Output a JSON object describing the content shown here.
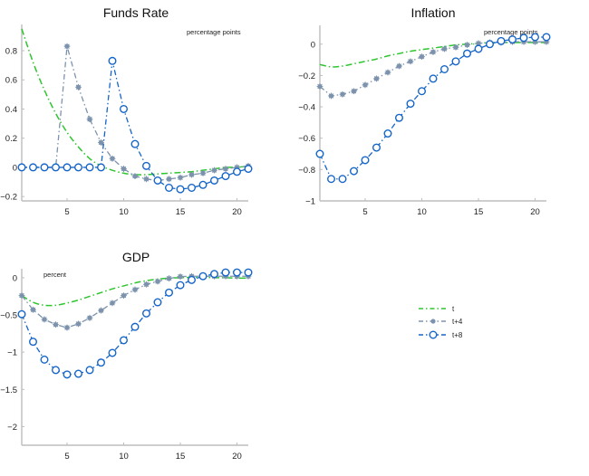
{
  "chart_data": [
    {
      "type": "line",
      "title": "Funds Rate",
      "unit_label": "percentage points",
      "xlabel": "",
      "ylabel": "",
      "xlim": [
        1,
        21
      ],
      "ylim": [
        -0.23,
        0.98
      ],
      "xticks": [
        5,
        10,
        15,
        20
      ],
      "yticks": [
        -0.2,
        0,
        0.2,
        0.4,
        0.6,
        0.8
      ],
      "ytick_labels": [
        "−0.2",
        "0",
        "0.2",
        "0.4",
        "0.6",
        "0.8"
      ],
      "x": [
        1,
        2,
        3,
        4,
        5,
        6,
        7,
        8,
        9,
        10,
        11,
        12,
        13,
        14,
        15,
        16,
        17,
        18,
        19,
        20,
        21
      ],
      "series": [
        {
          "name": "t",
          "values": [
            0.95,
            0.72,
            0.53,
            0.37,
            0.24,
            0.14,
            0.06,
            0.01,
            -0.02,
            -0.04,
            -0.05,
            -0.05,
            -0.045,
            -0.04,
            -0.035,
            -0.03,
            -0.02,
            -0.01,
            0.0,
            0.0,
            0.01
          ]
        },
        {
          "name": "t+4",
          "values": [
            0,
            0,
            0,
            0,
            0.83,
            0.55,
            0.33,
            0.17,
            0.06,
            -0.01,
            -0.06,
            -0.08,
            -0.09,
            -0.08,
            -0.07,
            -0.05,
            -0.04,
            -0.02,
            -0.01,
            0.0,
            0.01
          ]
        },
        {
          "name": "t+8",
          "values": [
            0,
            0,
            0,
            0,
            0,
            0,
            0,
            0,
            0.73,
            0.4,
            0.16,
            0.01,
            -0.09,
            -0.14,
            -0.15,
            -0.14,
            -0.12,
            -0.09,
            -0.06,
            -0.03,
            -0.01
          ]
        }
      ]
    },
    {
      "type": "line",
      "title": "Inflation",
      "unit_label": "percentage points",
      "xlabel": "",
      "ylabel": "",
      "xlim": [
        1,
        21
      ],
      "ylim": [
        -1,
        0.12
      ],
      "xticks": [
        5,
        10,
        15,
        20
      ],
      "yticks": [
        -1,
        -0.8,
        -0.6,
        -0.4,
        -0.2,
        0
      ],
      "ytick_labels": [
        "−1",
        "−0.8",
        "−0.6",
        "−0.4",
        "−0.2",
        "0"
      ],
      "x": [
        1,
        2,
        3,
        4,
        5,
        6,
        7,
        8,
        9,
        10,
        11,
        12,
        13,
        14,
        15,
        16,
        17,
        18,
        19,
        20,
        21
      ],
      "series": [
        {
          "name": "t",
          "values": [
            -0.13,
            -0.145,
            -0.14,
            -0.125,
            -0.11,
            -0.095,
            -0.075,
            -0.06,
            -0.045,
            -0.035,
            -0.025,
            -0.015,
            -0.005,
            0.0,
            0.005,
            0.01,
            0.01,
            0.01,
            0.01,
            0.01,
            0.01
          ]
        },
        {
          "name": "t+4",
          "values": [
            -0.27,
            -0.33,
            -0.32,
            -0.3,
            -0.26,
            -0.22,
            -0.18,
            -0.14,
            -0.11,
            -0.08,
            -0.05,
            -0.03,
            -0.02,
            -0.005,
            0.005,
            0.01,
            0.01,
            0.015,
            0.015,
            0.015,
            0.015
          ]
        },
        {
          "name": "t+8",
          "values": [
            -0.7,
            -0.86,
            -0.86,
            -0.81,
            -0.74,
            -0.66,
            -0.57,
            -0.47,
            -0.38,
            -0.3,
            -0.22,
            -0.16,
            -0.11,
            -0.06,
            -0.03,
            0.0,
            0.02,
            0.03,
            0.04,
            0.045,
            0.045
          ]
        }
      ]
    },
    {
      "type": "line",
      "title": "GDP",
      "unit_label": "percent",
      "xlabel": "",
      "ylabel": "",
      "xlim": [
        1,
        21
      ],
      "ylim": [
        -2.25,
        0.12
      ],
      "xticks": [
        5,
        10,
        15,
        20
      ],
      "yticks": [
        -2,
        -1.5,
        -1,
        -0.5,
        0
      ],
      "ytick_labels": [
        "−2",
        "−1.5",
        "−1",
        "−0.5",
        "0"
      ],
      "x": [
        1,
        2,
        3,
        4,
        5,
        6,
        7,
        8,
        9,
        10,
        11,
        12,
        13,
        14,
        15,
        16,
        17,
        18,
        19,
        20,
        21
      ],
      "series": [
        {
          "name": "t",
          "values": [
            -0.24,
            -0.33,
            -0.37,
            -0.37,
            -0.34,
            -0.3,
            -0.25,
            -0.2,
            -0.15,
            -0.11,
            -0.07,
            -0.04,
            -0.02,
            -0.005,
            0.0,
            0.005,
            0.005,
            0.0,
            0.0,
            -0.005,
            -0.005
          ]
        },
        {
          "name": "t+4",
          "values": [
            -0.24,
            -0.43,
            -0.56,
            -0.63,
            -0.67,
            -0.62,
            -0.54,
            -0.44,
            -0.34,
            -0.24,
            -0.16,
            -0.09,
            -0.05,
            -0.01,
            0.015,
            0.02,
            0.02,
            0.02,
            0.02,
            0.02,
            0.02
          ]
        },
        {
          "name": "t+8",
          "values": [
            -0.49,
            -0.86,
            -1.1,
            -1.24,
            -1.3,
            -1.29,
            -1.24,
            -1.14,
            -1.01,
            -0.84,
            -0.66,
            -0.48,
            -0.33,
            -0.2,
            -0.1,
            -0.03,
            0.02,
            0.05,
            0.07,
            0.07,
            0.07
          ]
        }
      ]
    }
  ],
  "legend": {
    "placement": "bottom-right",
    "entries": [
      {
        "name": "t",
        "color": "#2fc52f",
        "marker": "none",
        "dash": "dash-dot"
      },
      {
        "name": "t+4",
        "color": "#7d93ad",
        "marker": "asterisk",
        "dash": "dash-dot"
      },
      {
        "name": "t+8",
        "color": "#1565c8",
        "marker": "circle",
        "dash": "dash-dot"
      }
    ]
  },
  "colors": {
    "t": "#2fc52f",
    "t+4": "#7d93ad",
    "t+8": "#1565c8",
    "axis": "#bdbdbd"
  }
}
